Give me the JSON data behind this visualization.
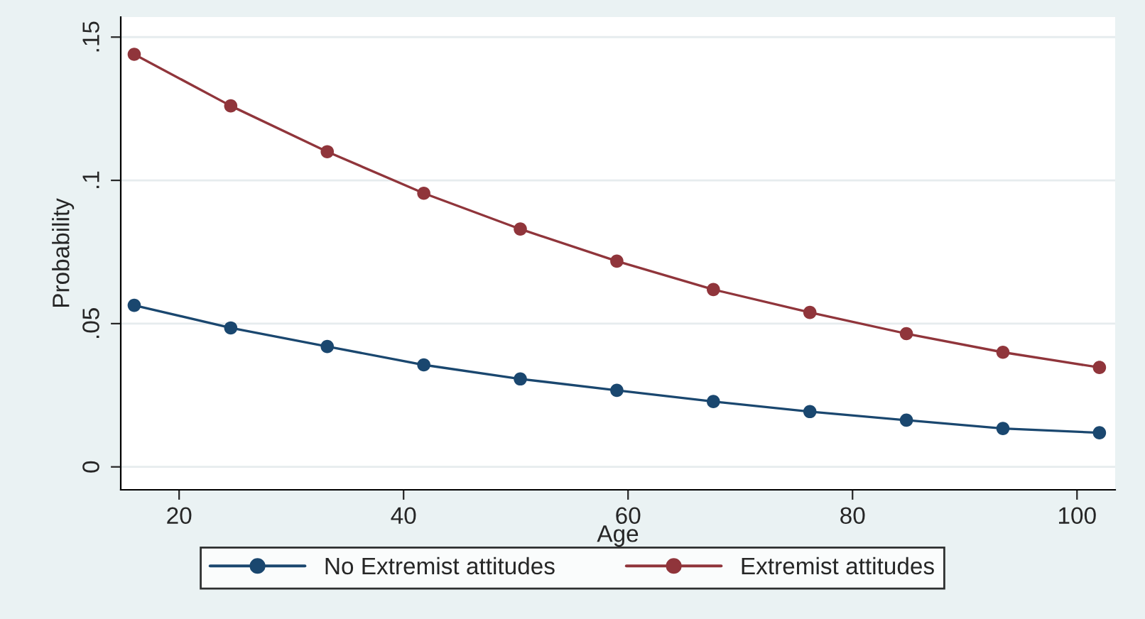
{
  "chart_data": {
    "type": "line",
    "xlabel": "Age",
    "ylabel": "Probability",
    "x": [
      16,
      24.6,
      33.2,
      41.8,
      50.4,
      59,
      67.6,
      76.2,
      84.8,
      93.4,
      102
    ],
    "series": [
      {
        "name": "No Extremist attitudes",
        "color": "#1a476f",
        "values": [
          0.0564,
          0.0485,
          0.042,
          0.0356,
          0.0307,
          0.0267,
          0.0228,
          0.0193,
          0.0163,
          0.0134,
          0.0119
        ]
      },
      {
        "name": "Extremist attitudes",
        "color": "#90353b",
        "values": [
          0.144,
          0.126,
          0.11,
          0.0955,
          0.083,
          0.0718,
          0.0619,
          0.0539,
          0.0465,
          0.04,
          0.0347
        ]
      }
    ],
    "xlim": [
      14.8,
      103.4
    ],
    "xticks": [
      20,
      40,
      60,
      80,
      100
    ],
    "ylim": [
      -0.008,
      0.157
    ],
    "yticks": [
      {
        "value": 0,
        "label": "0"
      },
      {
        "value": 0.05,
        "label": ".05"
      },
      {
        "value": 0.1,
        "label": ".1"
      },
      {
        "value": 0.15,
        "label": ".15"
      }
    ],
    "grid": "y",
    "legend": "bottom",
    "marker": "circle",
    "line_style": "solid"
  }
}
